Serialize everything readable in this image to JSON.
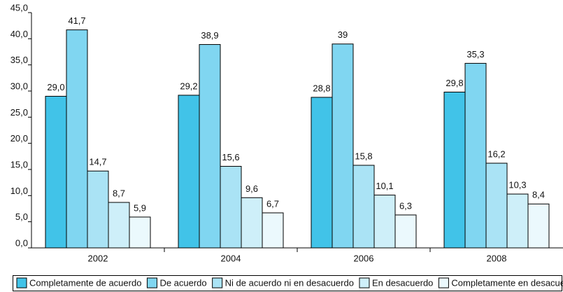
{
  "chart_data": {
    "type": "bar",
    "categories": [
      "2002",
      "2004",
      "2006",
      "2008"
    ],
    "series": [
      {
        "name": "Completamente de acuerdo",
        "color": "#41c3e8",
        "values": [
          29.0,
          29.2,
          28.8,
          29.8
        ],
        "value_labels": [
          "29,0",
          "29,2",
          "28,8",
          "29,8"
        ]
      },
      {
        "name": "De acuerdo",
        "color": "#80d6f1",
        "values": [
          41.7,
          38.9,
          39,
          35.3
        ],
        "value_labels": [
          "41,7",
          "38,9",
          "39",
          "35,3"
        ]
      },
      {
        "name": "Ni de acuerdo ni en desacuerdo",
        "color": "#aae3f5",
        "values": [
          14.7,
          15.6,
          15.8,
          16.2
        ],
        "value_labels": [
          "14,7",
          "15,6",
          "15,8",
          "16,2"
        ]
      },
      {
        "name": "En desacuerdo",
        "color": "#ceeff9",
        "values": [
          8.7,
          9.6,
          10.1,
          10.3
        ],
        "value_labels": [
          "8,7",
          "9,6",
          "10,1",
          "10,3"
        ]
      },
      {
        "name": "Completamente en desacuerdo",
        "color": "#ebf9fd",
        "values": [
          5.9,
          6.7,
          6.3,
          8.4
        ],
        "value_labels": [
          "5,9",
          "6,7",
          "6,3",
          "8,4"
        ]
      }
    ],
    "ylim": [
      0,
      45
    ],
    "yticks": [
      {
        "value": 0,
        "label": "0,0"
      },
      {
        "value": 5,
        "label": "5,0"
      },
      {
        "value": 10,
        "label": "10,0"
      },
      {
        "value": 15,
        "label": "15,0"
      },
      {
        "value": 20,
        "label": "20,0"
      },
      {
        "value": 25,
        "label": "25,0"
      },
      {
        "value": 30,
        "label": "30,0"
      },
      {
        "value": 35,
        "label": "35,0"
      },
      {
        "value": 40,
        "label": "40,0"
      },
      {
        "value": 45,
        "label": "45,0"
      }
    ],
    "grid": false,
    "legend": "bottom"
  }
}
